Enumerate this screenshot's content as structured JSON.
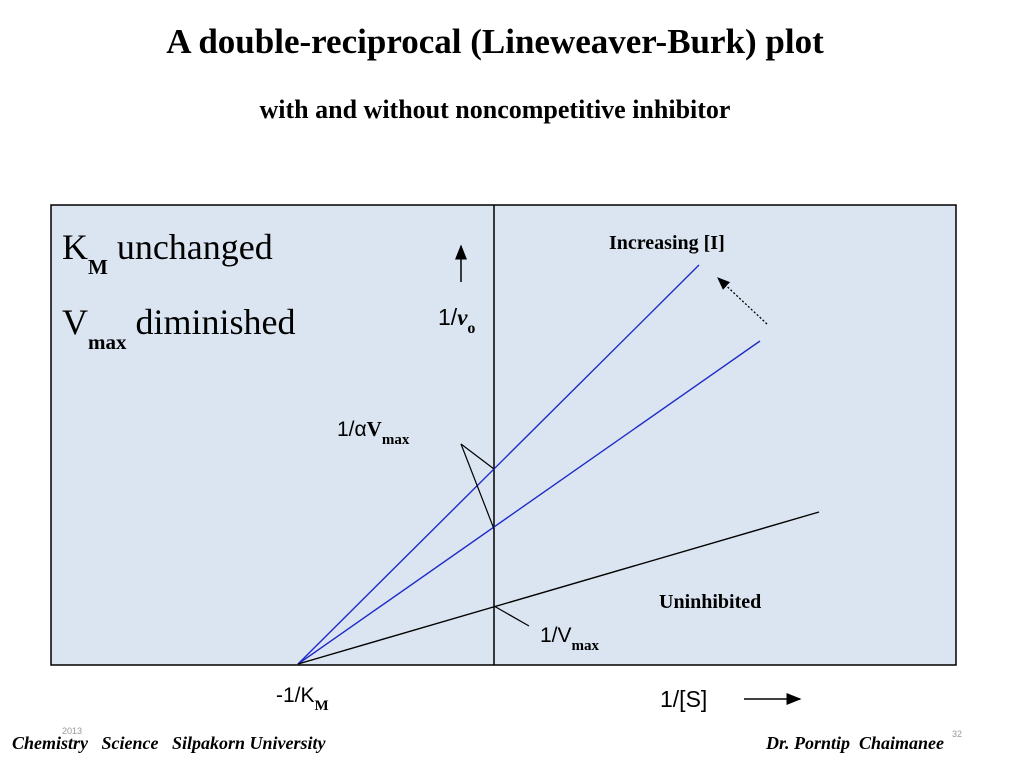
{
  "slide": {
    "title": "A double-reciprocal (Lineweaver-Burk) plot",
    "subtitle": "with and without noncompetitive inhibitor"
  },
  "diagram": {
    "background_color": "#dbe5f1",
    "inhibited_line_color": "#1f2bc8",
    "uninhibited_line_color": "#000000",
    "km_label": {
      "main": "K",
      "sub": "M",
      "rest": " unchanged"
    },
    "vmax_label": {
      "main": "V",
      "sub": "max",
      "rest": " diminished"
    },
    "y_axis_label": {
      "prefix": "1/",
      "italic": "v",
      "sub": "o"
    },
    "x_axis_label": "1/[S]",
    "x_intercept_label": {
      "prefix": "-1/K",
      "sub": "M"
    },
    "alpha_vmax_label": {
      "prefix": "1/",
      "alpha": "α",
      "main": "V",
      "sub": "max"
    },
    "vmax_label_intercept": {
      "prefix": "1/V",
      "sub": "max"
    },
    "increasing_label": "Increasing [I]",
    "uninhibited_label": "Uninhibited"
  },
  "footer": {
    "left": "Chemistry   Science   Silpakorn University",
    "right": "Dr. Porntip  Chaimanee",
    "year": "2013",
    "page": "32"
  }
}
